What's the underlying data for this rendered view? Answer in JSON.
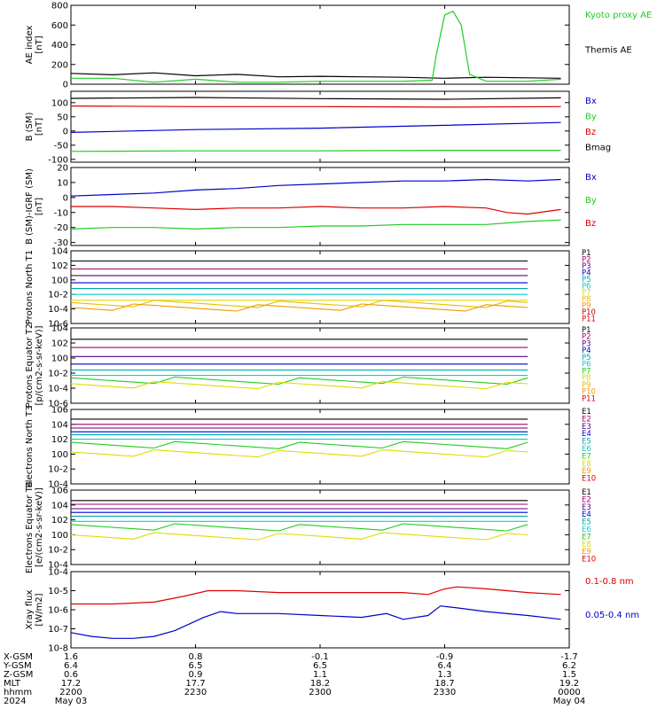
{
  "x_axis": {
    "times": [
      "2200",
      "2230",
      "2300",
      "2330",
      "0000"
    ],
    "row_labels": [
      "X-GSM",
      "Y-GSM",
      "Z-GSM",
      "MLT",
      "hhmm",
      "2024"
    ],
    "rows": [
      [
        "1.6",
        "0.8",
        "-0.1",
        "-0.9",
        "-1.7"
      ],
      [
        "6.4",
        "6.5",
        "6.5",
        "6.4",
        "6.2"
      ],
      [
        "0.6",
        "0.9",
        "1.1",
        "1.3",
        "1.5"
      ],
      [
        "17.2",
        "17.7",
        "18.2",
        "18.7",
        "19.2"
      ],
      [
        "2200",
        "2230",
        "2300",
        "2330",
        "0000"
      ]
    ],
    "dates": {
      "start": "May 03",
      "end": "May 04"
    }
  },
  "colors": {
    "black": "#000000",
    "red": "#dd0000",
    "green": "#22cc22",
    "blue": "#0000cc",
    "magenta": "#aa0066",
    "purple": "#550088",
    "teal": "#00aaaa",
    "cyan": "#11cccc",
    "yellow": "#dddd00",
    "orange": "#ee9900",
    "darkred": "#bb0000"
  },
  "chart_data": [
    {
      "id": "ae",
      "type": "line",
      "ylabel": "AE index [nT]",
      "yscale": "linear",
      "ylim": [
        0,
        800
      ],
      "yticks": [
        "0",
        "200",
        "400",
        "600",
        "800"
      ],
      "ytick_values": [
        0,
        200,
        400,
        600,
        800
      ],
      "legend": [
        {
          "label": "Kyoto proxy AE",
          "color": "#22cc22"
        },
        {
          "label": "Themis AE",
          "color": "#000000"
        }
      ],
      "series": [
        {
          "name": "Themis AE",
          "color": "#000000",
          "x": [
            2200,
            2210,
            2220,
            2230,
            2240,
            2250,
            2300,
            2310,
            2320,
            2330,
            2340,
            2350,
            2358
          ],
          "y": [
            110,
            95,
            115,
            85,
            100,
            75,
            80,
            75,
            70,
            60,
            70,
            65,
            60
          ]
        },
        {
          "name": "Kyoto proxy AE",
          "color": "#22cc22",
          "x": [
            2200,
            2210,
            2220,
            2230,
            2240,
            2250,
            2300,
            2310,
            2320,
            2327,
            2328,
            2330,
            2332,
            2334,
            2336,
            2340,
            2350,
            2358
          ],
          "y": [
            60,
            60,
            20,
            50,
            20,
            20,
            30,
            30,
            30,
            40,
            300,
            700,
            740,
            600,
            100,
            30,
            30,
            50
          ]
        }
      ]
    },
    {
      "id": "bsm",
      "type": "line",
      "ylabel": "B (SM) [nT]",
      "yscale": "linear",
      "ylim": [
        -110,
        140
      ],
      "yticks": [
        "-100",
        "-50",
        "0",
        "50",
        "100"
      ],
      "ytick_values": [
        -100,
        -50,
        0,
        50,
        100
      ],
      "legend": [
        {
          "label": "Bx",
          "color": "#0000cc"
        },
        {
          "label": "By",
          "color": "#22cc22"
        },
        {
          "label": "Bz",
          "color": "#dd0000"
        },
        {
          "label": "Bmag",
          "color": "#000000"
        }
      ],
      "series": [
        {
          "name": "Bmag",
          "color": "#000000",
          "x": [
            2200,
            2230,
            2300,
            2330,
            2358
          ],
          "y": [
            115,
            118,
            114,
            112,
            117
          ]
        },
        {
          "name": "Bz",
          "color": "#dd0000",
          "x": [
            2200,
            2230,
            2300,
            2330,
            2358
          ],
          "y": [
            88,
            86,
            86,
            84,
            86
          ]
        },
        {
          "name": "Bx",
          "color": "#0000cc",
          "x": [
            2200,
            2230,
            2300,
            2330,
            2358
          ],
          "y": [
            -5,
            5,
            10,
            20,
            30
          ]
        },
        {
          "name": "By",
          "color": "#22cc22",
          "x": [
            2200,
            2230,
            2300,
            2330,
            2358
          ],
          "y": [
            -72,
            -70,
            -70,
            -68,
            -68
          ]
        }
      ]
    },
    {
      "id": "bdiff",
      "type": "line",
      "ylabel": "B (SM)-IGRF (SM) [nT]",
      "yscale": "linear",
      "ylim": [
        -32,
        20
      ],
      "yticks": [
        "-30",
        "-20",
        "-10",
        "0",
        "10",
        "20"
      ],
      "ytick_values": [
        -30,
        -20,
        -10,
        0,
        10,
        20
      ],
      "legend": [
        {
          "label": "Bx",
          "color": "#0000cc"
        },
        {
          "label": "By",
          "color": "#22cc22"
        },
        {
          "label": "Bz",
          "color": "#dd0000"
        }
      ],
      "series": [
        {
          "name": "Bx",
          "color": "#0000cc",
          "x": [
            2200,
            2210,
            2220,
            2230,
            2240,
            2250,
            2300,
            2310,
            2320,
            2330,
            2340,
            2350,
            2358
          ],
          "y": [
            1,
            2,
            3,
            5,
            6,
            8,
            9,
            10,
            11,
            11,
            12,
            11,
            12
          ]
        },
        {
          "name": "Bz",
          "color": "#dd0000",
          "x": [
            2200,
            2210,
            2220,
            2230,
            2240,
            2250,
            2300,
            2310,
            2320,
            2330,
            2340,
            2345,
            2350,
            2358
          ],
          "y": [
            -6,
            -6,
            -7,
            -8,
            -7,
            -7,
            -6,
            -7,
            -7,
            -6,
            -7,
            -10,
            -11,
            -8
          ]
        },
        {
          "name": "By",
          "color": "#22cc22",
          "x": [
            2200,
            2210,
            2220,
            2230,
            2240,
            2250,
            2300,
            2310,
            2320,
            2330,
            2340,
            2350,
            2358
          ],
          "y": [
            -21,
            -20,
            -20,
            -21,
            -20,
            -20,
            -19,
            -19,
            -18,
            -18,
            -18,
            -16,
            -15
          ]
        }
      ]
    },
    {
      "id": "p_north",
      "type": "line",
      "ylabel": "Protons North T1",
      "yscale": "log",
      "ylim": [
        -6,
        4
      ],
      "yticks": [
        "10-6",
        "10-4",
        "10-2",
        "100",
        "102",
        "104"
      ],
      "ytick_values": [
        -6,
        -4,
        -2,
        0,
        2,
        4
      ],
      "legend": [
        "P1",
        "P2",
        "P3",
        "P4",
        "P5",
        "P6",
        "P7",
        "P8",
        "P9",
        "P10",
        "P11"
      ],
      "legend_colors": [
        "#000000",
        "#aa0066",
        "#550088",
        "#0000cc",
        "#00aaaa",
        "#11cccc",
        "#dddd00",
        "#eebb00",
        "#ee9900",
        "#bb0000",
        "#dd0000"
      ],
      "levels": [
        2.6,
        1.5,
        0.6,
        -0.4,
        -1.2,
        -2.0,
        -2.8,
        -3.3,
        -3.8
      ]
    },
    {
      "id": "p_eq",
      "type": "line",
      "ylabel": "Protons Equator T2 [p/(cm2-s-sr-keV)]",
      "yscale": "log",
      "ylim": [
        -6,
        4
      ],
      "yticks": [
        "10-6",
        "10-4",
        "10-2",
        "100",
        "102",
        "104"
      ],
      "ytick_values": [
        -6,
        -4,
        -2,
        0,
        2,
        4
      ],
      "legend": [
        "P1",
        "P2",
        "P3",
        "P4",
        "P5",
        "P6",
        "P7",
        "P8",
        "P9",
        "P10",
        "P11"
      ],
      "legend_colors": [
        "#000000",
        "#aa0066",
        "#550088",
        "#0000cc",
        "#00aaaa",
        "#11cccc",
        "#22cc22",
        "#dddd00",
        "#eebb00",
        "#ee9900",
        "#dd0000"
      ],
      "levels": [
        2.5,
        1.4,
        0.2,
        -0.8,
        -1.6,
        -2.3,
        -3.0,
        -3.6
      ]
    },
    {
      "id": "e_north",
      "type": "line",
      "ylabel": "Electrons North T3",
      "yscale": "log",
      "ylim": [
        -4,
        6
      ],
      "yticks": [
        "10-4",
        "10-2",
        "100",
        "102",
        "104",
        "106"
      ],
      "ytick_values": [
        -4,
        -2,
        0,
        2,
        4,
        6
      ],
      "legend": [
        "E1",
        "E2",
        "E3",
        "E4",
        "E5",
        "E6",
        "E7",
        "E8",
        "E9",
        "E10"
      ],
      "legend_colors": [
        "#000000",
        "#aa0066",
        "#550088",
        "#0000cc",
        "#00aaaa",
        "#11cccc",
        "#22cc22",
        "#dddd00",
        "#ee9900",
        "#dd0000"
      ],
      "levels": [
        4.7,
        4.0,
        3.5,
        3.0,
        2.6,
        2.0,
        1.2,
        0.1
      ]
    },
    {
      "id": "e_eq",
      "type": "line",
      "ylabel": "Electrons Equator T4 [e/(cm2-s-sr-keV)]",
      "yscale": "log",
      "ylim": [
        -4,
        6
      ],
      "yticks": [
        "10-4",
        "10-2",
        "100",
        "102",
        "104",
        "106"
      ],
      "ytick_values": [
        -4,
        -2,
        0,
        2,
        4,
        6
      ],
      "legend": [
        "E1",
        "E2",
        "E3",
        "E4",
        "E5",
        "E6",
        "E7",
        "E8",
        "E9",
        "E10"
      ],
      "legend_colors": [
        "#000000",
        "#aa0066",
        "#550088",
        "#0000cc",
        "#00aaaa",
        "#11cccc",
        "#22cc22",
        "#dddd00",
        "#ee9900",
        "#dd0000"
      ],
      "levels": [
        4.6,
        4.1,
        3.5,
        3.0,
        2.5,
        1.8,
        1.0,
        -0.2
      ]
    },
    {
      "id": "xray",
      "type": "line",
      "ylabel": "Xray flux [W/m2]",
      "yscale": "log",
      "ylim": [
        -8,
        -4
      ],
      "yticks": [
        "10-8",
        "10-7",
        "10-6",
        "10-5",
        "10-4"
      ],
      "ytick_values": [
        -8,
        -7,
        -6,
        -5,
        -4
      ],
      "legend": [
        {
          "label": "0.1-0.8 nm",
          "color": "#dd0000"
        },
        {
          "label": "0.05-0.4 nm",
          "color": "#0000cc"
        }
      ],
      "series": [
        {
          "name": "0.1-0.8 nm",
          "color": "#dd0000",
          "x": [
            2200,
            2210,
            2220,
            2227,
            2233,
            2240,
            2250,
            2300,
            2310,
            2320,
            2326,
            2330,
            2333,
            2340,
            2350,
            2358
          ],
          "y": [
            -5.7,
            -5.7,
            -5.6,
            -5.3,
            -5.0,
            -5.0,
            -5.1,
            -5.1,
            -5.1,
            -5.1,
            -5.2,
            -4.9,
            -4.8,
            -4.9,
            -5.1,
            -5.2
          ]
        },
        {
          "name": "0.05-0.4 nm",
          "color": "#0000cc",
          "x": [
            2200,
            2205,
            2210,
            2215,
            2220,
            2225,
            2228,
            2232,
            2236,
            2240,
            2250,
            2300,
            2310,
            2316,
            2320,
            2326,
            2329,
            2333,
            2340,
            2350,
            2358
          ],
          "y": [
            -7.2,
            -7.4,
            -7.5,
            -7.5,
            -7.4,
            -7.1,
            -6.8,
            -6.4,
            -6.1,
            -6.2,
            -6.2,
            -6.3,
            -6.4,
            -6.2,
            -6.5,
            -6.3,
            -5.8,
            -5.9,
            -6.1,
            -6.3,
            -6.5
          ]
        }
      ]
    }
  ]
}
